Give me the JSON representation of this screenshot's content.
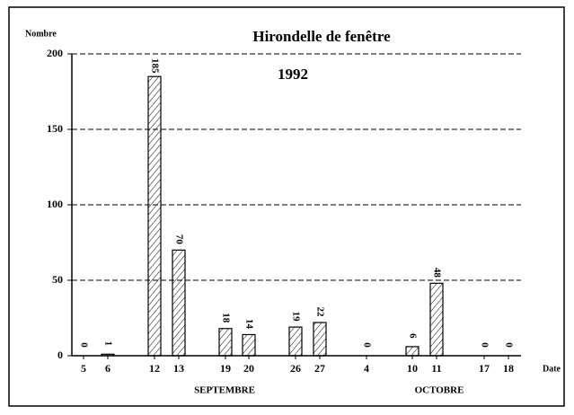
{
  "chart_data": {
    "type": "bar",
    "title": "Hirondelle de fenêtre",
    "subtitle": "1992",
    "y_label": "Nombre",
    "x_label": "Date",
    "x_groups": [
      "SEPTEMBRE",
      "OCTOBRE"
    ],
    "categories": [
      "5",
      "6",
      "12",
      "13",
      "19",
      "20",
      "26",
      "27",
      "4",
      "10",
      "11",
      "17",
      "18"
    ],
    "values": [
      0,
      1,
      185,
      70,
      18,
      14,
      19,
      22,
      0,
      6,
      48,
      0,
      0
    ],
    "color": "#000000",
    "ylim": [
      0,
      200
    ],
    "yticks": [
      0,
      50,
      100,
      150,
      200
    ],
    "grid": true
  }
}
